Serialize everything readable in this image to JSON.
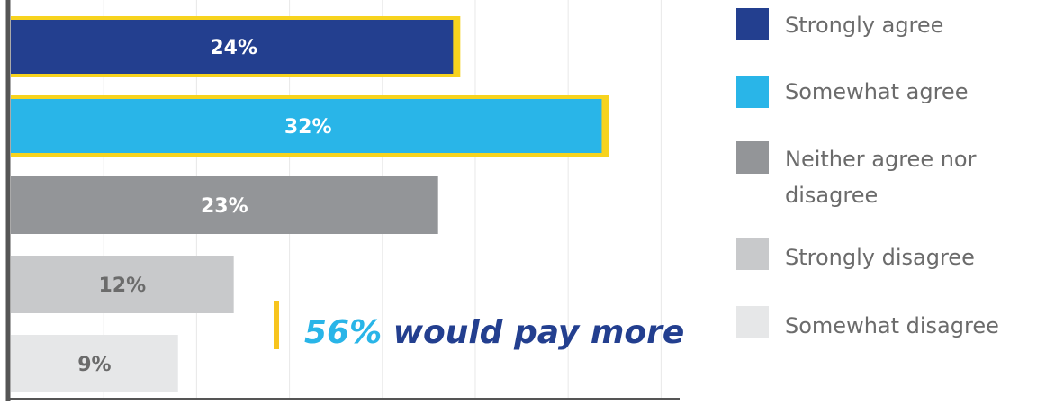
{
  "chart_data": {
    "type": "bar",
    "orientation": "horizontal",
    "categories": [
      "Strongly agree",
      "Somewhat agree",
      "Neither agree nor disagree",
      "Strongly disagree",
      "Somewhat disagree"
    ],
    "values": [
      24,
      32,
      23,
      12,
      9
    ],
    "value_labels": [
      "24%",
      "32%",
      "23%",
      "12%",
      "9%"
    ],
    "colors": [
      "#233f8f",
      "#29b5e8",
      "#939598",
      "#c8c9cb",
      "#e6e7e8"
    ],
    "label_colors": [
      "#ffffff",
      "#ffffff",
      "#ffffff",
      "#6b6b6b",
      "#6b6b6b"
    ],
    "highlighted": [
      true,
      true,
      false,
      false,
      false
    ],
    "highlight_color": "#f7d31e",
    "xlim": [
      0,
      36
    ],
    "grid": true,
    "legend": {
      "position": "right",
      "entries": [
        {
          "label": "Strongly agree",
          "color": "#233f8f"
        },
        {
          "label": "Somewhat agree",
          "color": "#29b5e8"
        },
        {
          "label": "Neither agree nor disagree",
          "color": "#939598"
        },
        {
          "label": "Strongly disagree",
          "color": "#c8c9cb"
        },
        {
          "label": "Somewhat disagree",
          "color": "#e6e7e8"
        }
      ]
    },
    "annotation": {
      "value": "56%",
      "text": "would pay more",
      "value_color": "#29b5e8",
      "text_color": "#233f8f",
      "marker_color": "#f7c41e"
    }
  }
}
